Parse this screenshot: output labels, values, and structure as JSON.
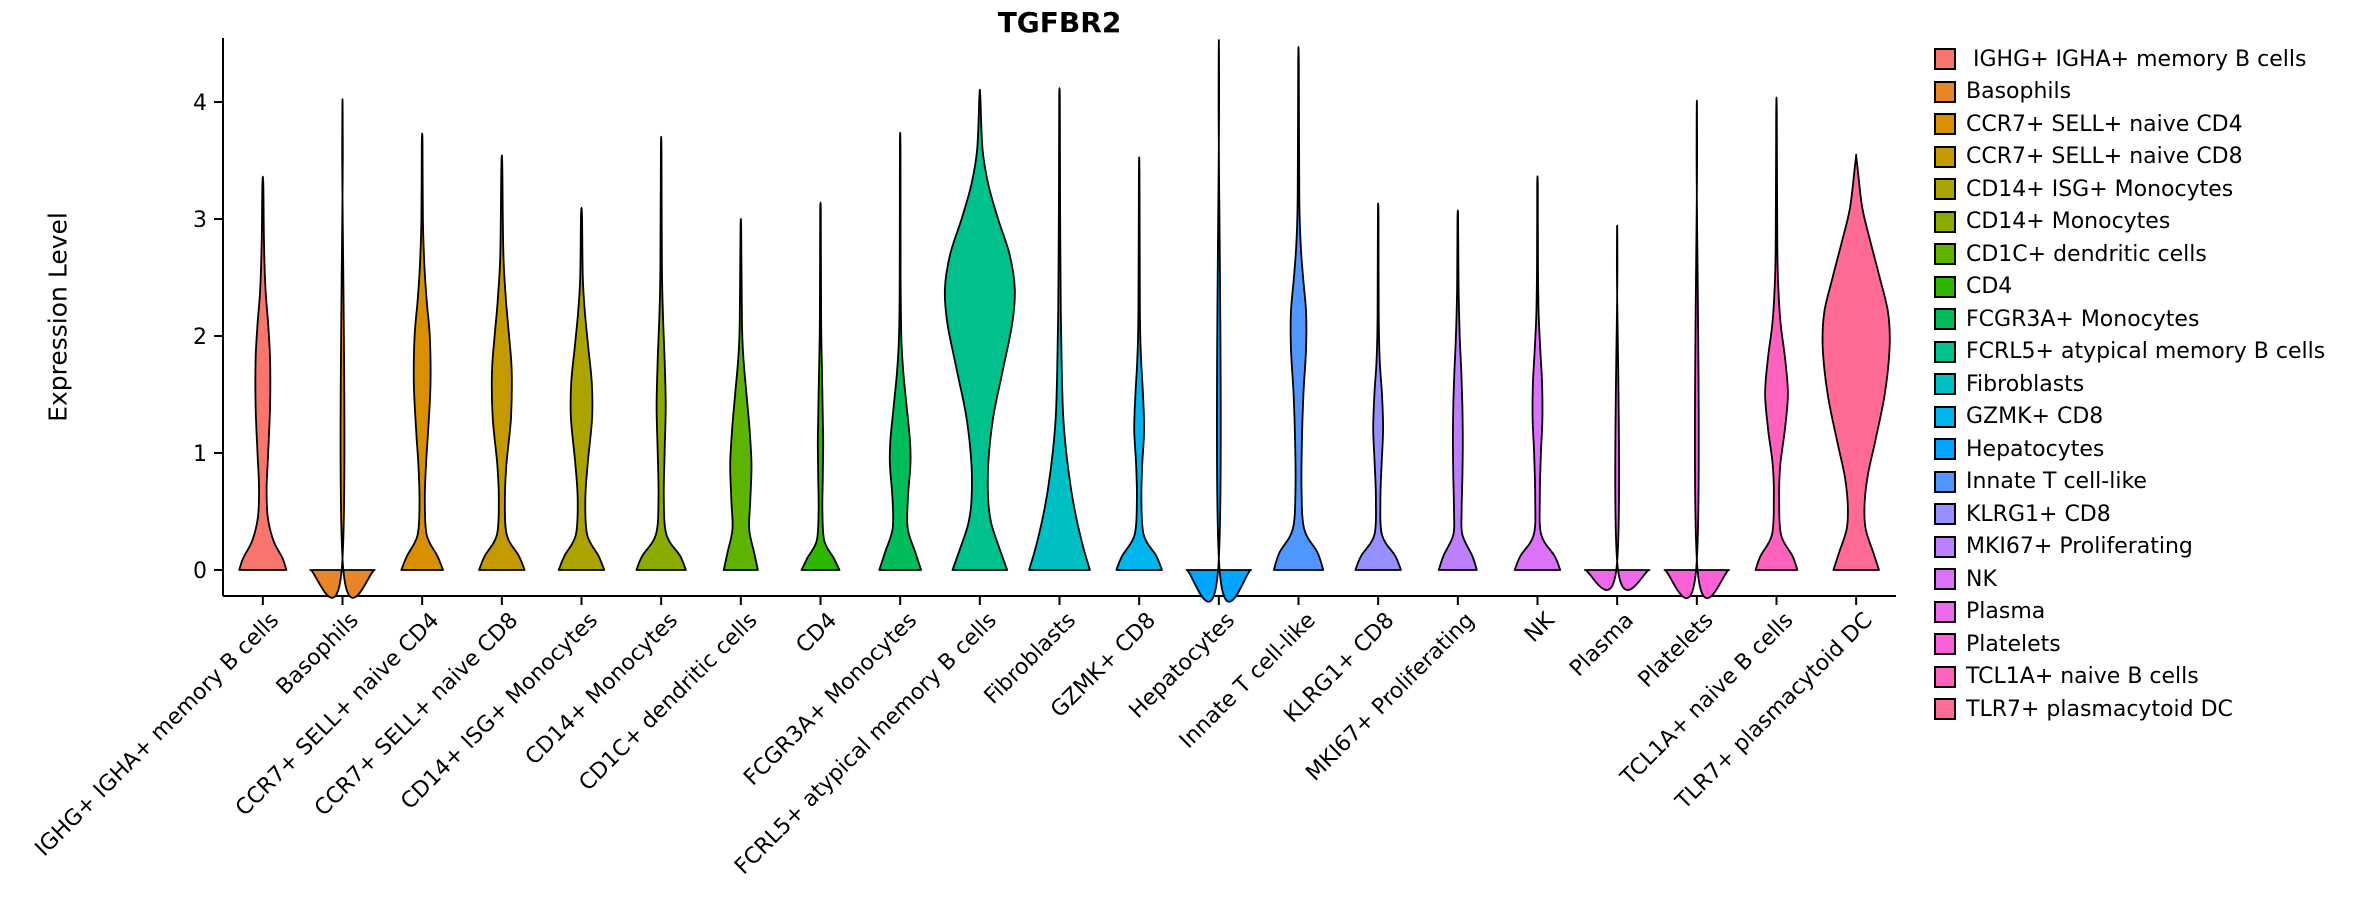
{
  "chart_data": {
    "type": "violin",
    "title": "TGFBR2",
    "ylabel": "Expression Level",
    "yticks": [
      0,
      1,
      2,
      3,
      4
    ],
    "ylim": [
      -0.22,
      4.55
    ],
    "grid": false,
    "legend_position": "right",
    "categories": [
      "IGHG+ IGHA+ memory B cells",
      "Basophils",
      "CCR7+ SELL+ naive CD4",
      "CCR7+ SELL+ naive CD8",
      "CD14+ ISG+ Monocytes",
      "CD14+ Monocytes",
      "CD1C+ dendritic cells",
      "CD4",
      "FCGR3A+ Monocytes",
      "FCRL5+ atypical memory B cells",
      "Fibroblasts",
      "GZMK+ CD8",
      "Hepatocytes",
      "Innate T cell-like",
      "KLRG1+ CD8",
      "MKI67+ Proliferating",
      "NK",
      "Plasma",
      "Platelets",
      "TCL1A+ naive B cells",
      "TLR7+ plasmacytoid DC"
    ],
    "legend_labels": [
      " IGHG+ IGHA+ memory B cells",
      "Basophils",
      "CCR7+ SELL+ naive CD4",
      "CCR7+ SELL+ naive CD8",
      "CD14+ ISG+ Monocytes",
      "CD14+ Monocytes",
      "CD1C+ dendritic cells",
      "CD4",
      "FCGR3A+ Monocytes",
      "FCRL5+ atypical memory B cells",
      "Fibroblasts",
      "GZMK+ CD8",
      "Hepatocytes",
      "Innate T cell-like",
      "KLRG1+ CD8",
      "MKI67+ Proliferating",
      "NK",
      "Plasma",
      "Platelets",
      "TCL1A+ naive B cells",
      "TLR7+ plasmacytoid DC"
    ],
    "series": [
      {
        "name": "IGHG+ IGHA+ memory B cells",
        "color": "#F8766D",
        "max_expression": 3.3,
        "profile": [
          [
            0,
            0.62
          ],
          [
            0.1,
            0.52
          ],
          [
            0.25,
            0.28
          ],
          [
            0.45,
            0.13
          ],
          [
            0.7,
            0.1
          ],
          [
            1.0,
            0.14
          ],
          [
            1.4,
            0.19
          ],
          [
            1.8,
            0.19
          ],
          [
            2.1,
            0.14
          ],
          [
            2.4,
            0.07
          ],
          [
            2.8,
            0.03
          ],
          [
            3.3,
            0.012
          ]
        ]
      },
      {
        "name": "Basophils",
        "color": "#E88526",
        "max_expression": 3.58,
        "profile": [
          [
            0,
            0.85
          ],
          [
            0.035,
            0.012
          ],
          [
            3.58,
            0.007
          ]
        ]
      },
      {
        "name": "CCR7+ SELL+ naive CD4",
        "color": "#D89000",
        "max_expression": 3.65,
        "profile": [
          [
            0,
            0.55
          ],
          [
            0.12,
            0.4
          ],
          [
            0.3,
            0.12
          ],
          [
            0.6,
            0.07
          ],
          [
            0.9,
            0.1
          ],
          [
            1.2,
            0.16
          ],
          [
            1.6,
            0.22
          ],
          [
            2.0,
            0.2
          ],
          [
            2.3,
            0.12
          ],
          [
            2.6,
            0.06
          ],
          [
            3.0,
            0.02
          ],
          [
            3.65,
            0.01
          ]
        ]
      },
      {
        "name": "CCR7+ SELL+ naive CD8",
        "color": "#C49A00",
        "max_expression": 3.45,
        "profile": [
          [
            0,
            0.6
          ],
          [
            0.12,
            0.45
          ],
          [
            0.3,
            0.13
          ],
          [
            0.6,
            0.08
          ],
          [
            0.9,
            0.12
          ],
          [
            1.3,
            0.24
          ],
          [
            1.7,
            0.26
          ],
          [
            2.0,
            0.19
          ],
          [
            2.3,
            0.11
          ],
          [
            2.7,
            0.04
          ],
          [
            3.45,
            0.012
          ]
        ]
      },
      {
        "name": "CD14+ ISG+ Monocytes",
        "color": "#ABA300",
        "max_expression": 3.03,
        "profile": [
          [
            0,
            0.6
          ],
          [
            0.12,
            0.45
          ],
          [
            0.3,
            0.15
          ],
          [
            0.6,
            0.1
          ],
          [
            0.9,
            0.16
          ],
          [
            1.3,
            0.28
          ],
          [
            1.6,
            0.27
          ],
          [
            1.9,
            0.18
          ],
          [
            2.2,
            0.09
          ],
          [
            2.5,
            0.035
          ],
          [
            3.03,
            0.012
          ]
        ]
      },
      {
        "name": "CD14+ Monocytes",
        "color": "#8CAB00",
        "max_expression": 3.58,
        "profile": [
          [
            0,
            0.65
          ],
          [
            0.12,
            0.5
          ],
          [
            0.3,
            0.14
          ],
          [
            0.6,
            0.07
          ],
          [
            1.0,
            0.09
          ],
          [
            1.4,
            0.12
          ],
          [
            1.8,
            0.09
          ],
          [
            2.2,
            0.045
          ],
          [
            2.6,
            0.02
          ],
          [
            3.58,
            0.008
          ]
        ]
      },
      {
        "name": "CD1C+ dendritic cells",
        "color": "#5EB300",
        "max_expression": 2.9,
        "profile": [
          [
            0,
            0.45
          ],
          [
            0.15,
            0.35
          ],
          [
            0.35,
            0.22
          ],
          [
            0.6,
            0.25
          ],
          [
            0.9,
            0.28
          ],
          [
            1.2,
            0.23
          ],
          [
            1.5,
            0.15
          ],
          [
            1.8,
            0.07
          ],
          [
            2.1,
            0.03
          ],
          [
            2.9,
            0.01
          ]
        ]
      },
      {
        "name": "CD4",
        "color": "#2FB600",
        "max_expression": 3.07,
        "profile": [
          [
            0,
            0.5
          ],
          [
            0.1,
            0.35
          ],
          [
            0.25,
            0.1
          ],
          [
            0.5,
            0.05
          ],
          [
            0.8,
            0.06
          ],
          [
            1.1,
            0.07
          ],
          [
            1.5,
            0.05
          ],
          [
            2.0,
            0.022
          ],
          [
            2.5,
            0.012
          ],
          [
            3.07,
            0.008
          ]
        ]
      },
      {
        "name": "FCGR3A+ Monocytes",
        "color": "#00BC59",
        "max_expression": 3.6,
        "profile": [
          [
            0,
            0.55
          ],
          [
            0.15,
            0.4
          ],
          [
            0.35,
            0.2
          ],
          [
            0.6,
            0.2
          ],
          [
            0.9,
            0.27
          ],
          [
            1.1,
            0.26
          ],
          [
            1.4,
            0.17
          ],
          [
            1.7,
            0.08
          ],
          [
            2.0,
            0.03
          ],
          [
            2.5,
            0.012
          ],
          [
            3.6,
            0.008
          ]
        ]
      },
      {
        "name": "FCRL5+ atypical memory B cells",
        "color": "#00C08D",
        "max_expression": 4.05,
        "profile": [
          [
            0,
            0.72
          ],
          [
            0.2,
            0.5
          ],
          [
            0.4,
            0.3
          ],
          [
            0.6,
            0.22
          ],
          [
            0.9,
            0.22
          ],
          [
            1.3,
            0.35
          ],
          [
            1.7,
            0.6
          ],
          [
            2.1,
            0.85
          ],
          [
            2.4,
            0.92
          ],
          [
            2.7,
            0.78
          ],
          [
            3.0,
            0.48
          ],
          [
            3.3,
            0.22
          ],
          [
            3.6,
            0.07
          ],
          [
            4.05,
            0.012
          ]
        ]
      },
      {
        "name": "Fibroblasts",
        "color": "#00BFC4",
        "max_expression": 4.05,
        "profile": [
          [
            0,
            0.8
          ],
          [
            0.2,
            0.62
          ],
          [
            0.45,
            0.44
          ],
          [
            0.7,
            0.3
          ],
          [
            1.0,
            0.18
          ],
          [
            1.3,
            0.1
          ],
          [
            1.7,
            0.06
          ],
          [
            2.2,
            0.035
          ],
          [
            2.8,
            0.02
          ],
          [
            3.5,
            0.012
          ],
          [
            4.05,
            0.008
          ]
        ]
      },
      {
        "name": "GZMK+ CD8",
        "color": "#00B5EE",
        "max_expression": 3.38,
        "profile": [
          [
            0,
            0.6
          ],
          [
            0.12,
            0.45
          ],
          [
            0.3,
            0.12
          ],
          [
            0.6,
            0.06
          ],
          [
            0.9,
            0.08
          ],
          [
            1.2,
            0.13
          ],
          [
            1.5,
            0.1
          ],
          [
            1.8,
            0.05
          ],
          [
            2.2,
            0.02
          ],
          [
            3.38,
            0.008
          ]
        ]
      },
      {
        "name": "Hepatocytes",
        "color": "#00A5FF",
        "max_expression": 4.03,
        "profile": [
          [
            0,
            0.85
          ],
          [
            0.035,
            0.012
          ],
          [
            4.03,
            0.007
          ]
        ]
      },
      {
        "name": "Innate T cell-like",
        "color": "#4F96FF",
        "max_expression": 4.33,
        "profile": [
          [
            0,
            0.65
          ],
          [
            0.15,
            0.5
          ],
          [
            0.35,
            0.15
          ],
          [
            0.7,
            0.08
          ],
          [
            1.1,
            0.09
          ],
          [
            1.5,
            0.13
          ],
          [
            1.9,
            0.2
          ],
          [
            2.2,
            0.2
          ],
          [
            2.5,
            0.12
          ],
          [
            2.8,
            0.055
          ],
          [
            3.2,
            0.02
          ],
          [
            4.33,
            0.008
          ]
        ]
      },
      {
        "name": "KLRG1+ CD8",
        "color": "#9590FF",
        "max_expression": 3.03,
        "profile": [
          [
            0,
            0.6
          ],
          [
            0.12,
            0.45
          ],
          [
            0.3,
            0.1
          ],
          [
            0.6,
            0.06
          ],
          [
            0.9,
            0.09
          ],
          [
            1.2,
            0.13
          ],
          [
            1.5,
            0.1
          ],
          [
            1.8,
            0.04
          ],
          [
            2.2,
            0.015
          ],
          [
            3.03,
            0.008
          ]
        ]
      },
      {
        "name": "MKI67+ Proliferating",
        "color": "#BC80FF",
        "max_expression": 3.0,
        "profile": [
          [
            0,
            0.5
          ],
          [
            0.12,
            0.38
          ],
          [
            0.3,
            0.12
          ],
          [
            0.5,
            0.1
          ],
          [
            0.8,
            0.12
          ],
          [
            1.1,
            0.13
          ],
          [
            1.4,
            0.12
          ],
          [
            1.7,
            0.09
          ],
          [
            2.0,
            0.05
          ],
          [
            2.4,
            0.02
          ],
          [
            3.0,
            0.008
          ]
        ]
      },
      {
        "name": "NK",
        "color": "#DC71FA",
        "max_expression": 3.28,
        "profile": [
          [
            0,
            0.6
          ],
          [
            0.12,
            0.45
          ],
          [
            0.3,
            0.1
          ],
          [
            0.6,
            0.06
          ],
          [
            1.0,
            0.09
          ],
          [
            1.3,
            0.13
          ],
          [
            1.6,
            0.12
          ],
          [
            1.9,
            0.07
          ],
          [
            2.2,
            0.03
          ],
          [
            2.6,
            0.012
          ],
          [
            3.28,
            0.008
          ]
        ]
      },
      {
        "name": "Plasma",
        "color": "#EF67EB",
        "max_expression": 2.62,
        "profile": [
          [
            0,
            0.85
          ],
          [
            0.03,
            0.012
          ],
          [
            2.62,
            0.007
          ]
        ]
      },
      {
        "name": "Platelets",
        "color": "#FB61D7",
        "max_expression": 3.57,
        "profile": [
          [
            0,
            0.85
          ],
          [
            0.03,
            0.012
          ],
          [
            3.57,
            0.007
          ]
        ]
      },
      {
        "name": "TCL1A+ naive B cells",
        "color": "#FF62BC",
        "max_expression": 3.9,
        "profile": [
          [
            0,
            0.55
          ],
          [
            0.12,
            0.42
          ],
          [
            0.3,
            0.12
          ],
          [
            0.6,
            0.07
          ],
          [
            0.9,
            0.1
          ],
          [
            1.2,
            0.22
          ],
          [
            1.5,
            0.3
          ],
          [
            1.8,
            0.23
          ],
          [
            2.1,
            0.11
          ],
          [
            2.4,
            0.05
          ],
          [
            2.8,
            0.02
          ],
          [
            3.9,
            0.008
          ]
        ]
      },
      {
        "name": "TLR7+ plasmacytoid DC",
        "color": "#FF6B94",
        "max_expression": 3.5,
        "profile": [
          [
            0,
            0.6
          ],
          [
            0.15,
            0.45
          ],
          [
            0.35,
            0.25
          ],
          [
            0.55,
            0.22
          ],
          [
            0.8,
            0.3
          ],
          [
            1.1,
            0.5
          ],
          [
            1.5,
            0.75
          ],
          [
            1.9,
            0.88
          ],
          [
            2.2,
            0.84
          ],
          [
            2.5,
            0.62
          ],
          [
            2.8,
            0.38
          ],
          [
            3.1,
            0.16
          ],
          [
            3.5,
            0.015
          ]
        ]
      }
    ]
  }
}
